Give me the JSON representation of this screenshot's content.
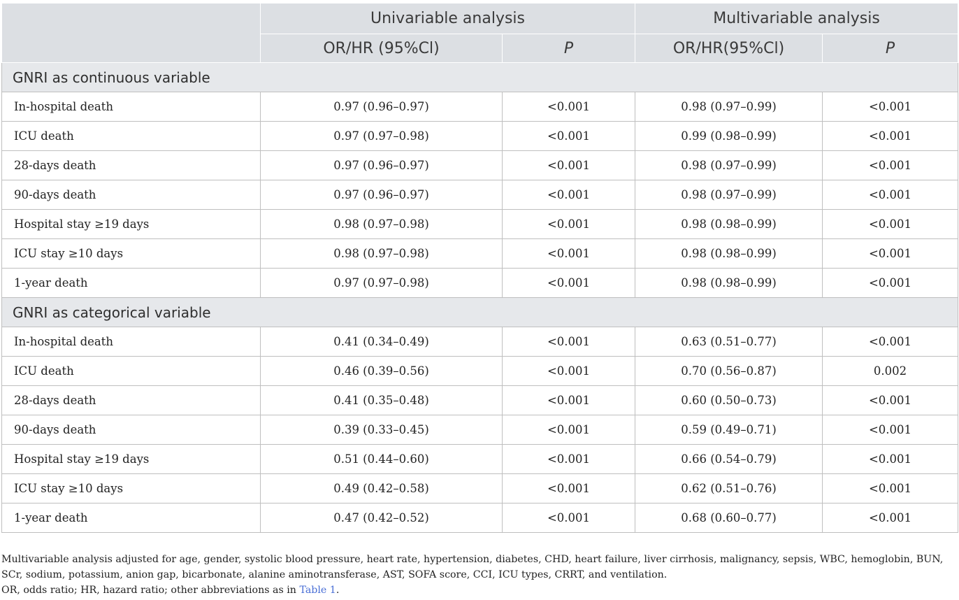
{
  "table": {
    "header_groups": [
      "Univariable analysis",
      "Multivariable analysis"
    ],
    "subheaders": [
      "OR/HR (95%Cl)",
      "P",
      "OR/HR(95%Cl)",
      "P"
    ],
    "sections": [
      {
        "title": "GNRI as continuous variable",
        "rows": [
          {
            "label": "In-hospital death",
            "uni_or": "0.97 (0.96–0.97)",
            "uni_p": "<0.001",
            "multi_or": "0.98 (0.97–0.99)",
            "multi_p": "<0.001"
          },
          {
            "label": "ICU death",
            "uni_or": "0.97 (0.97–0.98)",
            "uni_p": "<0.001",
            "multi_or": "0.99 (0.98–0.99)",
            "multi_p": "<0.001"
          },
          {
            "label": "28-days death",
            "uni_or": "0.97 (0.96–0.97)",
            "uni_p": "<0.001",
            "multi_or": "0.98 (0.97–0.99)",
            "multi_p": "<0.001"
          },
          {
            "label": "90-days death",
            "uni_or": "0.97 (0.96–0.97)",
            "uni_p": "<0.001",
            "multi_or": "0.98 (0.97–0.99)",
            "multi_p": "<0.001"
          },
          {
            "label": "Hospital stay ≥19 days",
            "uni_or": "0.98 (0.97–0.98)",
            "uni_p": "<0.001",
            "multi_or": "0.98 (0.98–0.99)",
            "multi_p": "<0.001"
          },
          {
            "label": "ICU stay ≥10 days",
            "uni_or": "0.98 (0.97–0.98)",
            "uni_p": "<0.001",
            "multi_or": "0.98 (0.98–0.99)",
            "multi_p": "<0.001"
          },
          {
            "label": "1-year death",
            "uni_or": "0.97 (0.97–0.98)",
            "uni_p": "<0.001",
            "multi_or": "0.98 (0.98–0.99)",
            "multi_p": "<0.001"
          }
        ]
      },
      {
        "title": "GNRI as categorical variable",
        "rows": [
          {
            "label": "In-hospital death",
            "uni_or": "0.41 (0.34–0.49)",
            "uni_p": "<0.001",
            "multi_or": "0.63 (0.51–0.77)",
            "multi_p": "<0.001"
          },
          {
            "label": "ICU death",
            "uni_or": "0.46 (0.39–0.56)",
            "uni_p": "<0.001",
            "multi_or": "0.70 (0.56–0.87)",
            "multi_p": "0.002"
          },
          {
            "label": "28-days death",
            "uni_or": "0.41 (0.35–0.48)",
            "uni_p": "<0.001",
            "multi_or": "0.60 (0.50–0.73)",
            "multi_p": "<0.001"
          },
          {
            "label": "90-days death",
            "uni_or": "0.39 (0.33–0.45)",
            "uni_p": "<0.001",
            "multi_or": "0.59 (0.49–0.71)",
            "multi_p": "<0.001"
          },
          {
            "label": "Hospital stay ≥19 days",
            "uni_or": "0.51 (0.44–0.60)",
            "uni_p": "<0.001",
            "multi_or": "0.66 (0.54–0.79)",
            "multi_p": "<0.001"
          },
          {
            "label": "ICU stay ≥10 days",
            "uni_or": "0.49 (0.42–0.58)",
            "uni_p": "<0.001",
            "multi_or": "0.62 (0.51–0.76)",
            "multi_p": "<0.001"
          },
          {
            "label": "1-year death",
            "uni_or": "0.47 (0.42–0.52)",
            "uni_p": "<0.001",
            "multi_or": "0.68 (0.60–0.77)",
            "multi_p": "<0.001"
          }
        ]
      }
    ]
  },
  "footnotes": {
    "adjusted": "Multivariable analysis adjusted for age, gender, systolic blood pressure, heart rate, hypertension, diabetes, CHD, heart failure, liver cirrhosis, malignancy, sepsis, WBC, hemoglobin, BUN, SCr, sodium, potassium, anion gap, bicarbonate, alanine aminotransferase, AST, SOFA score, CCI, ICU types, CRRT, and ventilation.",
    "abbrev_prefix": "OR, odds ratio; HR, hazard ratio; other abbreviations as in ",
    "table_link": "Table 1",
    "abbrev_suffix": "."
  },
  "colors": {
    "header_bg": "#dcdfe3",
    "section_bg": "#e6e8eb",
    "grid_line": "#bfbfbf",
    "link": "#4a6fd6"
  }
}
